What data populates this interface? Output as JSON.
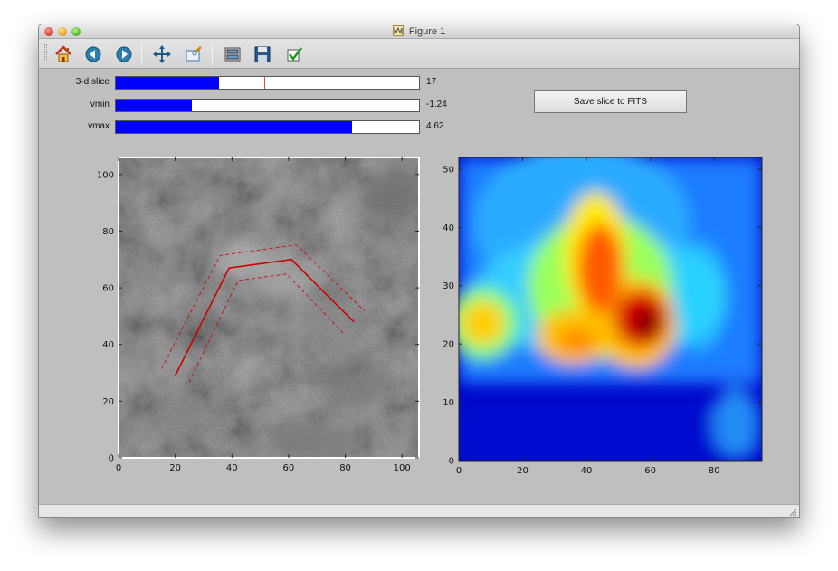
{
  "window": {
    "title": "Figure 1"
  },
  "toolbar": {
    "buttons": [
      {
        "name": "home-button",
        "icon": "home-icon"
      },
      {
        "name": "back-button",
        "icon": "back-arrow-icon"
      },
      {
        "name": "forward-button",
        "icon": "forward-arrow-icon"
      },
      {
        "name": "pan-button",
        "icon": "pan-arrows-icon"
      },
      {
        "name": "zoom-button",
        "icon": "zoom-rect-icon"
      },
      {
        "name": "subplots-button",
        "icon": "subplots-config-icon"
      },
      {
        "name": "save-figure-button",
        "icon": "floppy-disk-icon"
      },
      {
        "name": "edit-axis-button",
        "icon": "checkmark-icon"
      }
    ]
  },
  "sliders": [
    {
      "label": "3-d slice",
      "value_text": "17",
      "fill_fraction": 0.34,
      "marker_fraction": 0.49
    },
    {
      "label": "vmin",
      "value_text": "-1.24",
      "fill_fraction": 0.25
    },
    {
      "label": "vmax",
      "value_text": "4.62",
      "fill_fraction": 0.78
    }
  ],
  "save_button": {
    "label": "Save slice to FITS"
  },
  "colors": {
    "slider_fill": "#0000ff",
    "path_line": "#cc0000"
  },
  "chart_data": [
    {
      "type": "heatmap",
      "colormap": "gray",
      "xlim": [
        0,
        106
      ],
      "ylim": [
        0,
        106
      ],
      "xticks": [
        "0",
        "20",
        "40",
        "60",
        "80",
        "100"
      ],
      "yticks": [
        "0",
        "20",
        "40",
        "60",
        "80",
        "100"
      ],
      "path": {
        "x": [
          20,
          39,
          61,
          83
        ],
        "y": [
          29,
          67,
          70,
          48
        ]
      }
    },
    {
      "type": "heatmap",
      "colormap": "jet",
      "xlim": [
        0,
        95
      ],
      "ylim": [
        0,
        52
      ],
      "xticks": [
        "0",
        "20",
        "40",
        "60",
        "80"
      ],
      "yticks": [
        "0",
        "10",
        "20",
        "30",
        "40",
        "50"
      ]
    }
  ]
}
